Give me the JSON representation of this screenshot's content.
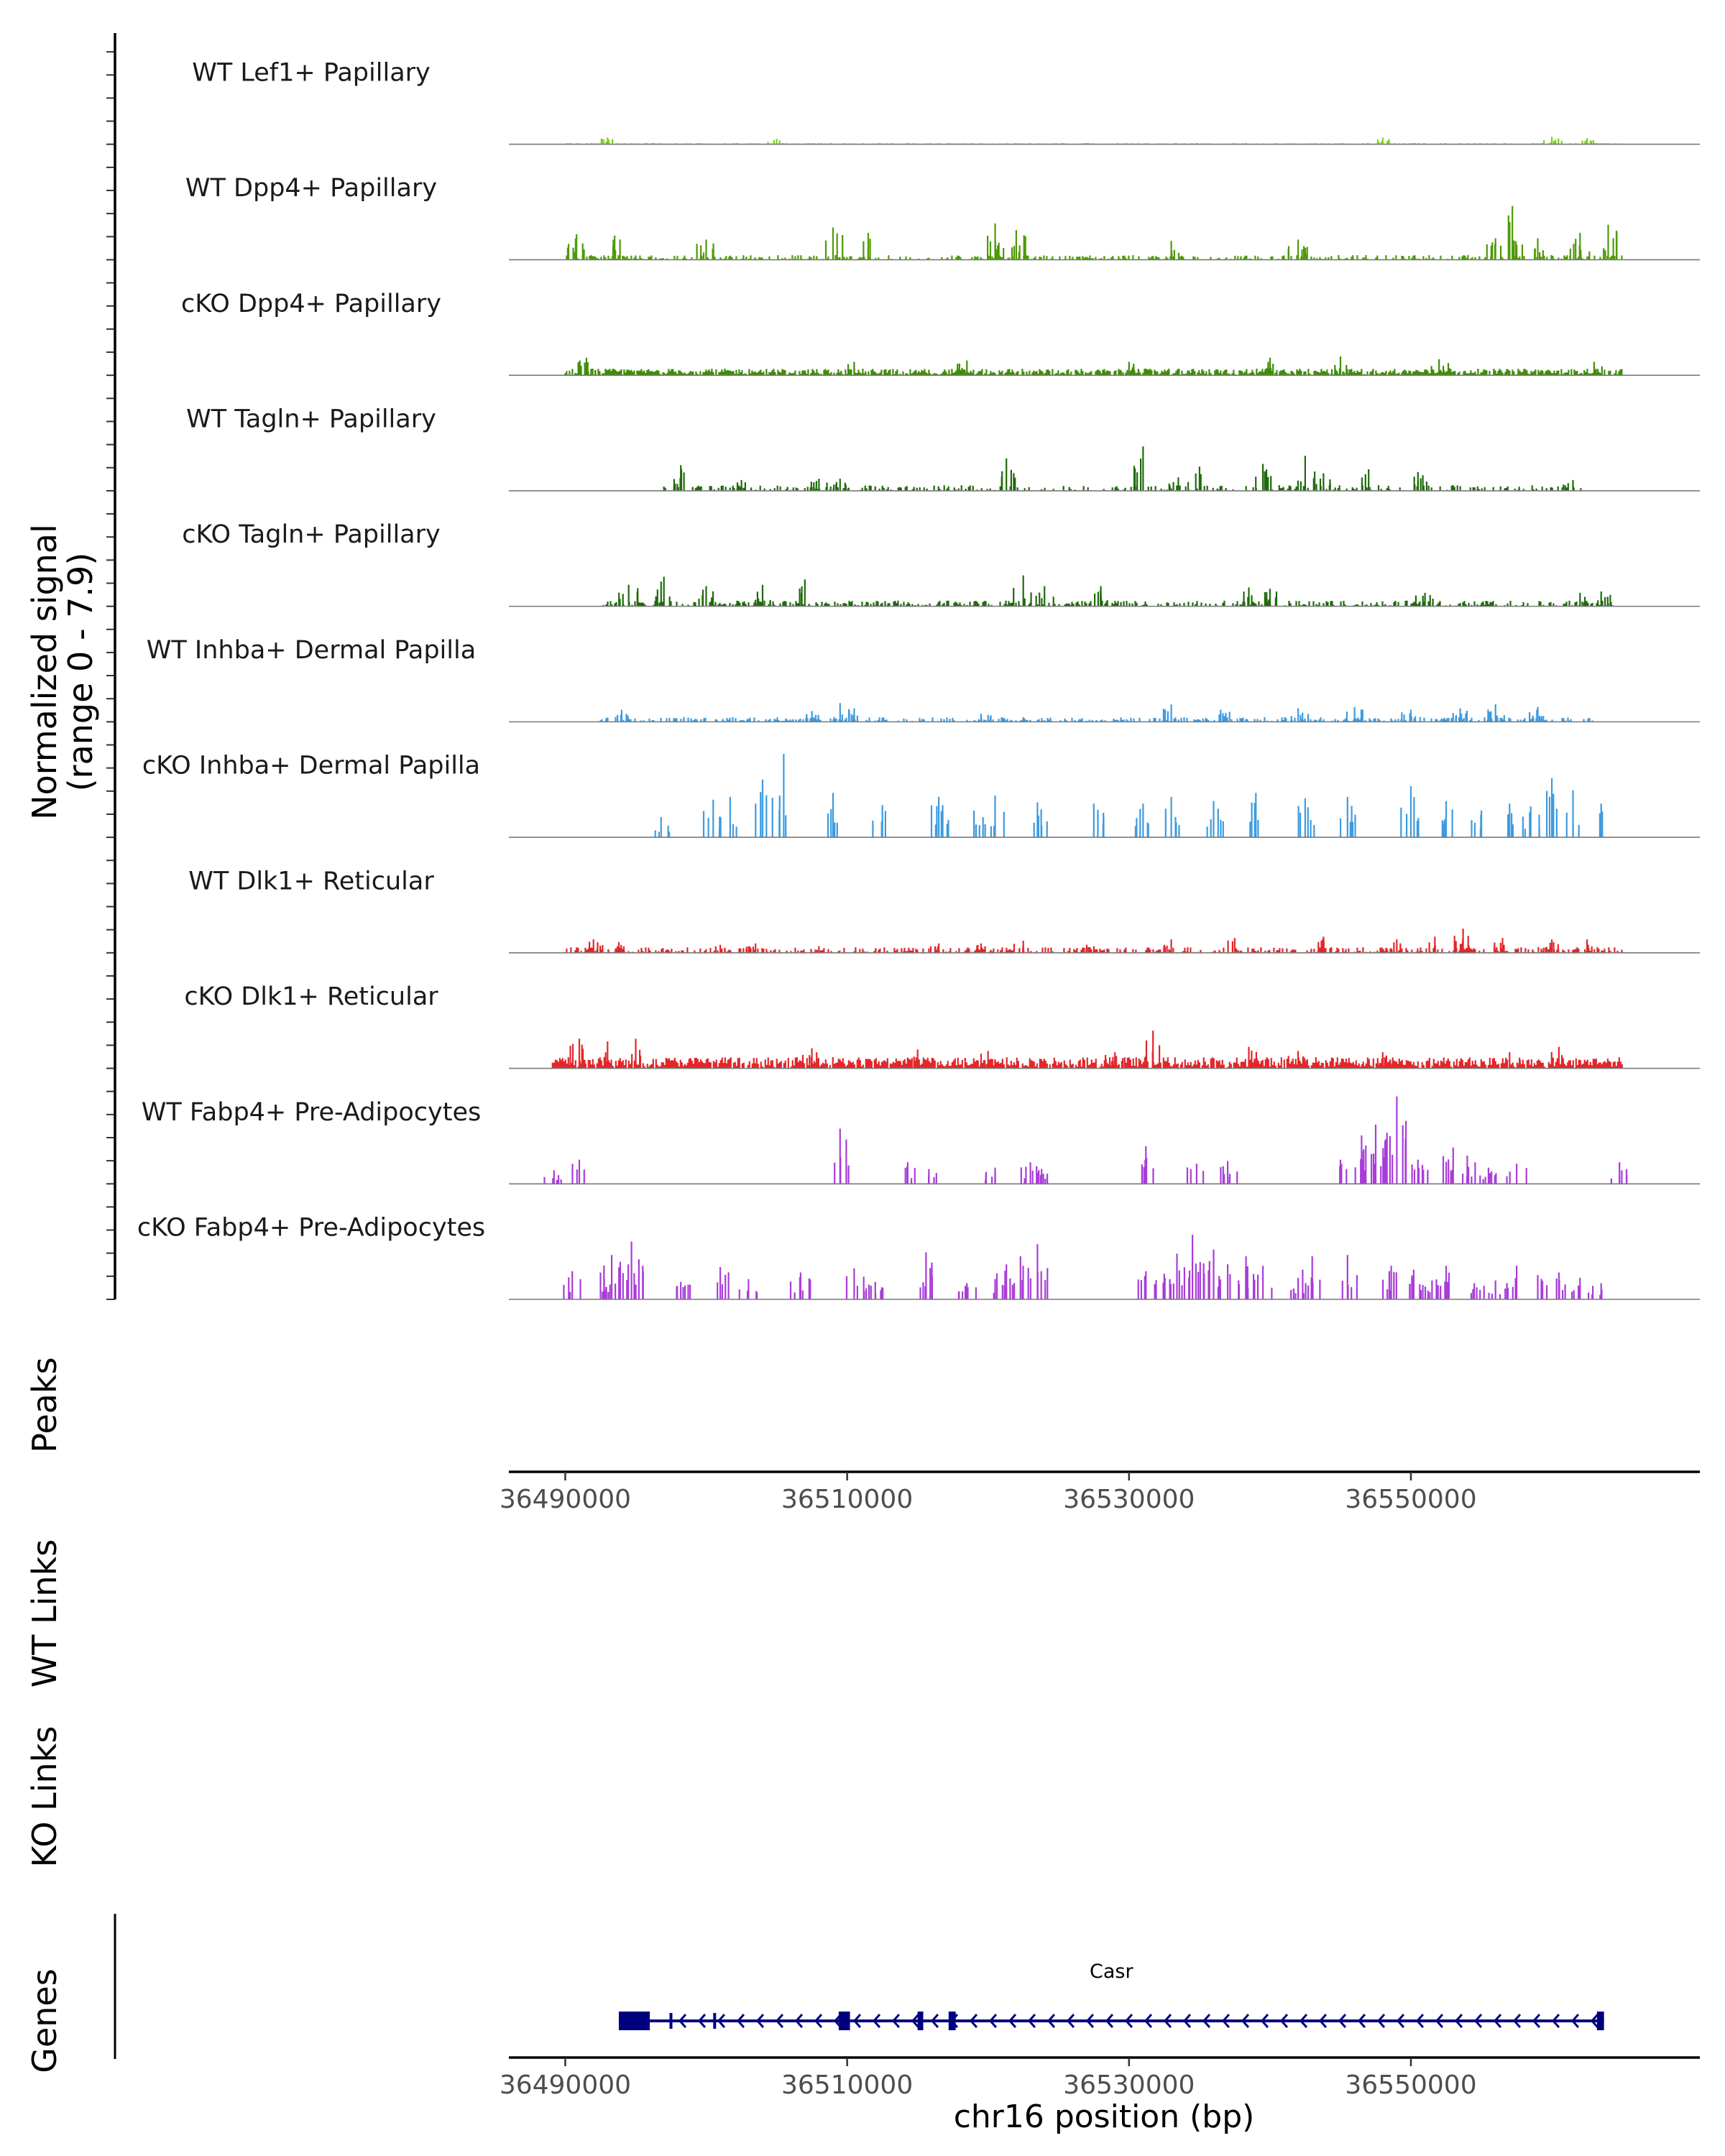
{
  "chart_data": {
    "type": "area",
    "title": "",
    "xlabel": "chr16 position (bp)",
    "xlim": [
      36486000,
      36570500
    ],
    "x_ticks": [
      36490000,
      36510000,
      36530000,
      36550000
    ],
    "x_tick_labels": [
      "36490000",
      "36510000",
      "36530000",
      "36550000"
    ],
    "coverage_ylabel_line1": "Normalized signal",
    "coverage_ylabel_line2": "(range 0 - 7.9)",
    "ylim": [
      0,
      7.9
    ],
    "peaks_label": "Peaks",
    "wt_links_label": "WT Links",
    "ko_links_label": "KO Links",
    "genes_label": "Genes",
    "tracks": [
      {
        "name": "WT Lef1+ Papillary",
        "color": "#7CD11B",
        "region": [
          36490000,
          36565000
        ],
        "base_level": 0.06,
        "density": 0.9,
        "peaks": [
          [
            36493000,
            0.5
          ],
          [
            36505000,
            0.4
          ],
          [
            36548000,
            0.5
          ],
          [
            36560000,
            0.55
          ],
          [
            36562500,
            0.45
          ]
        ]
      },
      {
        "name": "WT Dpp4+ Papillary",
        "color": "#4E9A06",
        "region": [
          36490000,
          36565000
        ],
        "base_level": 0.25,
        "density": 0.45,
        "peaks": [
          [
            36490800,
            1.9
          ],
          [
            36493500,
            1.8
          ],
          [
            36500000,
            1.5
          ],
          [
            36509000,
            2.4
          ],
          [
            36511500,
            2.0
          ],
          [
            36520500,
            2.7
          ],
          [
            36522000,
            2.2
          ],
          [
            36533000,
            1.4
          ],
          [
            36542000,
            1.5
          ],
          [
            36556000,
            1.6
          ],
          [
            36557200,
            4.0
          ],
          [
            36559000,
            1.6
          ],
          [
            36562000,
            2.0
          ],
          [
            36564000,
            2.6
          ]
        ]
      },
      {
        "name": "cKO Dpp4+ Papillary",
        "color": "#3E8E04",
        "region": [
          36490000,
          36565000
        ],
        "base_level": 0.35,
        "density": 0.85,
        "peaks": [
          [
            36491500,
            1.3
          ],
          [
            36510500,
            1.0
          ],
          [
            36518500,
            1.1
          ],
          [
            36530000,
            1.0
          ],
          [
            36540000,
            1.3
          ],
          [
            36545000,
            1.4
          ],
          [
            36552000,
            1.2
          ],
          [
            36563000,
            1.0
          ]
        ]
      },
      {
        "name": "WT Tagln+ Papillary",
        "color": "#1E6B0A",
        "region": [
          36497000,
          36562000
        ],
        "base_level": 0.3,
        "density": 0.35,
        "peaks": [
          [
            36498200,
            1.9
          ],
          [
            36502500,
            0.8
          ],
          [
            36508000,
            0.9
          ],
          [
            36509500,
            0.9
          ],
          [
            36521300,
            2.4
          ],
          [
            36531000,
            3.3
          ],
          [
            36533500,
            1.0
          ],
          [
            36535000,
            1.8
          ],
          [
            36539500,
            2.0
          ],
          [
            36542500,
            2.6
          ],
          [
            36543800,
            1.3
          ],
          [
            36547000,
            1.6
          ],
          [
            36550500,
            1.4
          ],
          [
            36561500,
            0.8
          ]
        ]
      },
      {
        "name": "cKO Tagln+ Papillary",
        "color": "#1E6B0A",
        "region": [
          36492500,
          36564500
        ],
        "base_level": 0.3,
        "density": 0.5,
        "peaks": [
          [
            36494500,
            1.6
          ],
          [
            36497000,
            2.2
          ],
          [
            36500000,
            1.5
          ],
          [
            36504000,
            1.6
          ],
          [
            36507000,
            2.0
          ],
          [
            36522500,
            2.3
          ],
          [
            36524000,
            1.5
          ],
          [
            36528000,
            1.5
          ],
          [
            36538500,
            1.4
          ],
          [
            36540000,
            1.3
          ],
          [
            36551000,
            1.0
          ],
          [
            36562000,
            1.0
          ],
          [
            36563500,
            1.1
          ]
        ]
      },
      {
        "name": "WT Inhba+ Dermal Papilla",
        "color": "#3D9BE0",
        "region": [
          36492500,
          36563000
        ],
        "base_level": 0.25,
        "density": 0.45,
        "peaks": [
          [
            36494000,
            0.9
          ],
          [
            36507500,
            0.8
          ],
          [
            36509500,
            1.4
          ],
          [
            36510500,
            1.0
          ],
          [
            36519500,
            0.6
          ],
          [
            36533000,
            1.3
          ],
          [
            36536500,
            0.9
          ],
          [
            36542000,
            1.0
          ],
          [
            36546000,
            1.1
          ],
          [
            36550000,
            0.9
          ],
          [
            36553500,
            1.0
          ],
          [
            36556000,
            1.3
          ],
          [
            36559000,
            1.1
          ]
        ]
      },
      {
        "name": "cKO Inhba+ Dermal Papilla",
        "color": "#3D9BE0",
        "region": [
          36496000,
          36565500
        ],
        "base_level": 0,
        "density": 0.4,
        "peaks": [
          [
            36496800,
            1.5
          ],
          [
            36500500,
            2.8
          ],
          [
            36501700,
            3.0
          ],
          [
            36504000,
            4.3
          ],
          [
            36505500,
            6.2
          ],
          [
            36509000,
            3.3
          ],
          [
            36512500,
            2.4
          ],
          [
            36516500,
            3.0
          ],
          [
            36519000,
            2.0
          ],
          [
            36520500,
            3.1
          ],
          [
            36523500,
            2.6
          ],
          [
            36527500,
            2.5
          ],
          [
            36531000,
            2.5
          ],
          [
            36533000,
            3.0
          ],
          [
            36536000,
            2.7
          ],
          [
            36539000,
            3.3
          ],
          [
            36542500,
            2.9
          ],
          [
            36545500,
            3.0
          ],
          [
            36550000,
            3.8
          ],
          [
            36552500,
            2.7
          ],
          [
            36555000,
            2.0
          ],
          [
            36557000,
            2.5
          ],
          [
            36558500,
            2.3
          ],
          [
            36560000,
            4.4
          ],
          [
            36561500,
            3.5
          ],
          [
            36563500,
            2.5
          ]
        ]
      },
      {
        "name": "WT Dlk1+ Reticular",
        "color": "#E3262A",
        "region": [
          36490000,
          36565000
        ],
        "base_level": 0.3,
        "density": 0.5,
        "peaks": [
          [
            36492000,
            1.0
          ],
          [
            36493800,
            0.8
          ],
          [
            36501000,
            0.6
          ],
          [
            36503500,
            0.7
          ],
          [
            36508000,
            0.5
          ],
          [
            36516500,
            0.7
          ],
          [
            36519500,
            0.7
          ],
          [
            36522500,
            0.9
          ],
          [
            36527000,
            0.6
          ],
          [
            36533000,
            1.0
          ],
          [
            36537500,
            1.1
          ],
          [
            36543800,
            1.2
          ],
          [
            36549000,
            1.0
          ],
          [
            36551700,
            1.2
          ],
          [
            36553700,
            1.8
          ],
          [
            36556500,
            1.1
          ],
          [
            36560000,
            1.0
          ],
          [
            36562500,
            1.0
          ]
        ]
      },
      {
        "name": "cKO Dlk1+ Reticular",
        "color": "#E3262A",
        "region": [
          36489000,
          36565000
        ],
        "base_level": 0.6,
        "density": 0.9,
        "peaks": [
          [
            36491000,
            2.2
          ],
          [
            36493000,
            2.0
          ],
          [
            36495000,
            2.2
          ],
          [
            36507500,
            1.5
          ],
          [
            36515000,
            1.4
          ],
          [
            36520000,
            1.3
          ],
          [
            36529000,
            1.2
          ],
          [
            36531700,
            2.8
          ],
          [
            36538500,
            1.6
          ],
          [
            36542000,
            1.3
          ],
          [
            36548000,
            1.2
          ],
          [
            36557000,
            1.2
          ],
          [
            36560500,
            1.6
          ]
        ]
      },
      {
        "name": "WT Fabp4+ Pre-Adipocytes",
        "color": "#A93CD9",
        "region": [
          36489000,
          36566000
        ],
        "base_level": 0,
        "density": 0.3,
        "peaks": [
          [
            36489200,
            1.0
          ],
          [
            36491000,
            1.8
          ],
          [
            36509500,
            4.1
          ],
          [
            36514300,
            1.6
          ],
          [
            36515800,
            1.1
          ],
          [
            36520500,
            1.2
          ],
          [
            36523000,
            1.6
          ],
          [
            36523800,
            1.1
          ],
          [
            36531200,
            2.8
          ],
          [
            36534800,
            1.5
          ],
          [
            36537000,
            1.7
          ],
          [
            36545000,
            1.8
          ],
          [
            36546500,
            3.6
          ],
          [
            36547500,
            4.4
          ],
          [
            36548200,
            3.3
          ],
          [
            36549000,
            6.5
          ],
          [
            36550500,
            1.8
          ],
          [
            36553000,
            2.7
          ],
          [
            36554000,
            2.1
          ],
          [
            36555500,
            1.2
          ],
          [
            36557500,
            1.5
          ],
          [
            36564800,
            1.6
          ]
        ]
      },
      {
        "name": "cKO Fabp4+ Pre-Adipocytes",
        "color": "#A93CD9",
        "region": [
          36490000,
          36566000
        ],
        "base_level": 0,
        "density": 0.4,
        "peaks": [
          [
            36490500,
            2.1
          ],
          [
            36492500,
            2.0
          ],
          [
            36493300,
            3.3
          ],
          [
            36494700,
            4.3
          ],
          [
            36495500,
            2.5
          ],
          [
            36498200,
            1.3
          ],
          [
            36501000,
            2.4
          ],
          [
            36503000,
            1.5
          ],
          [
            36506700,
            2.0
          ],
          [
            36510500,
            2.3
          ],
          [
            36512000,
            1.3
          ],
          [
            36515600,
            3.5
          ],
          [
            36518500,
            1.2
          ],
          [
            36520500,
            1.5
          ],
          [
            36521300,
            2.6
          ],
          [
            36522300,
            3.2
          ],
          [
            36523500,
            4.1
          ],
          [
            36531200,
            2.1
          ],
          [
            36532500,
            1.9
          ],
          [
            36533400,
            3.4
          ],
          [
            36534500,
            4.8
          ],
          [
            36536000,
            3.7
          ],
          [
            36537000,
            2.6
          ],
          [
            36538300,
            3.2
          ],
          [
            36539500,
            2.5
          ],
          [
            36542000,
            1.6
          ],
          [
            36543000,
            3.2
          ],
          [
            36545500,
            3.3
          ],
          [
            36548600,
            2.5
          ],
          [
            36550200,
            2.2
          ],
          [
            36551500,
            1.4
          ],
          [
            36552500,
            2.5
          ],
          [
            36554500,
            1.2
          ],
          [
            36556000,
            1.4
          ],
          [
            36557500,
            2.5
          ],
          [
            36559000,
            1.8
          ],
          [
            36560500,
            2.0
          ],
          [
            36562000,
            1.6
          ],
          [
            36563500,
            1.2
          ]
        ]
      }
    ],
    "gene": {
      "name": "Casr",
      "start": 36493800,
      "end": 36563700,
      "strand": "-",
      "exons": [
        [
          36493800,
          36496000
        ],
        [
          36509400,
          36510200
        ],
        [
          36515000,
          36515400
        ],
        [
          36517200,
          36517700
        ],
        [
          36563200,
          36563700
        ]
      ],
      "introns_markers": [
        36497500,
        36500600
      ]
    }
  }
}
